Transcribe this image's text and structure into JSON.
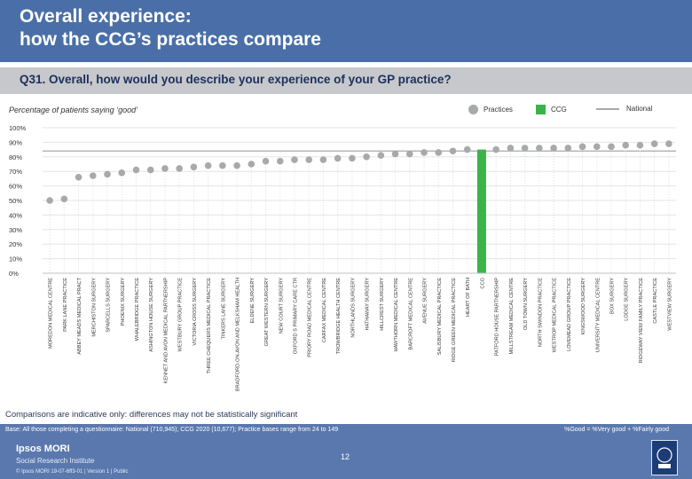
{
  "header": {
    "title_line1": "Overall experience:",
    "title_line2": "how the CCG’s practices compare"
  },
  "question": "Q31. Overall, how would you describe your experience of your GP practice?",
  "subtitle": "Percentage of patients saying ‘good’",
  "legend": {
    "practices": "Practices",
    "ccg": "CCG",
    "national": "National"
  },
  "colors": {
    "header": "#4a6fa8",
    "practice_marker": "#a7a9ac",
    "ccg_bar": "#3cb34a",
    "national_line": "#a7a9ac"
  },
  "chart_data": {
    "type": "scatter",
    "title": "Percentage of patients saying ‘good’",
    "ylim": [
      0,
      100
    ],
    "yticks": [
      "0%",
      "10%",
      "20%",
      "30%",
      "40%",
      "50%",
      "60%",
      "70%",
      "80%",
      "90%",
      "100%"
    ],
    "national": 84,
    "categories": [
      "MOREDON MEDICAL CENTRE",
      "PARK LANE PRACTICE",
      "ABBEY MEADS MEDICAL PRACT",
      "MERCHISTON SURGERY",
      "SPARCELLS SURGERY",
      "PHOENIX SURGERY",
      "WHALEBRIDGE PRACTICE",
      "ASHINGTON HOUSE SURGERY",
      "KENNET AND AVON MEDICAL PARTNERSHIP",
      "WESTBURY GROUP PRACTICE",
      "VICTORIA CROSS SURGERY",
      "THREE CHEQUERS MEDICAL PRACTICE",
      "TINKERS LANE SURGERY",
      "BRADFORD-ON-AVON AND MELKSHAM HEALTH",
      "ELDENE SURGERY",
      "GREAT WESTERN SURGERY",
      "NEW COURT SURGERY",
      "OXFORD S PRIMARY CARE CTR",
      "PRIORY ROAD MEDICAL CENTRE",
      "CARFAX MEDICAL CENTRE",
      "TROWBRIDGE HEALTH CENTRE",
      "NORTHLANDS SURGERY",
      "HATHAWAY SURGERY",
      "HILLCREST SURGERY",
      "HAWTHORN MEDICAL CENTRE",
      "BARCROFT MEDICAL CENTRE",
      "AVENUE SURGERY",
      "SALISBURY MEDICAL PRACTICE",
      "RIDGE GREEN MEDICAL PRACTICE",
      "HEART OF BATH",
      "CCG",
      "PATFORD HOUSE PARTNERSHIP",
      "MILLSTREAM MEDICAL CENTRE",
      "OLD TOWN SURGERY",
      "NORTH SWINDON PRACTICE",
      "WESTROP MEDICAL PRACTICE",
      "LOVEMEAD GROUP PRACTICE",
      "KINGSWOOD SURGERY",
      "UNIVERSITY MEDICAL CENTRE",
      "BOX SURGERY",
      "LODGE SURGERY",
      "RIDGEWAY VIEW FAMILY PRACTICE",
      "CASTLE PRACTICE",
      "WESTVIEW SURGERY"
    ],
    "values": [
      50,
      51,
      66,
      67,
      68,
      69,
      71,
      71,
      72,
      72,
      73,
      74,
      74,
      74,
      75,
      77,
      77,
      78,
      78,
      78,
      79,
      79,
      80,
      81,
      82,
      82,
      83,
      83,
      84,
      85,
      85,
      85,
      86,
      86,
      86,
      86,
      86,
      87,
      87,
      87,
      88,
      88,
      89,
      89
    ],
    "ccg_index": 30,
    "xlabel": "",
    "ylabel": ""
  },
  "note": "Comparisons are indicative only: differences may not be statistically significant",
  "footer": {
    "base": "Base: All those completing a questionnaire: National (710,945); CCG 2020 (10,677); Practice bases range from 24 to 149",
    "formula": "%Good = %Very good + %Fairly good",
    "brand_line1": "Ipsos MORI",
    "brand_line2": "Social Research Institute",
    "copyright": "© Ipsos MORI     19-07-6ff3-01 | Version 1 | Public",
    "page_number": "12",
    "logo_text": "Ipsos"
  }
}
